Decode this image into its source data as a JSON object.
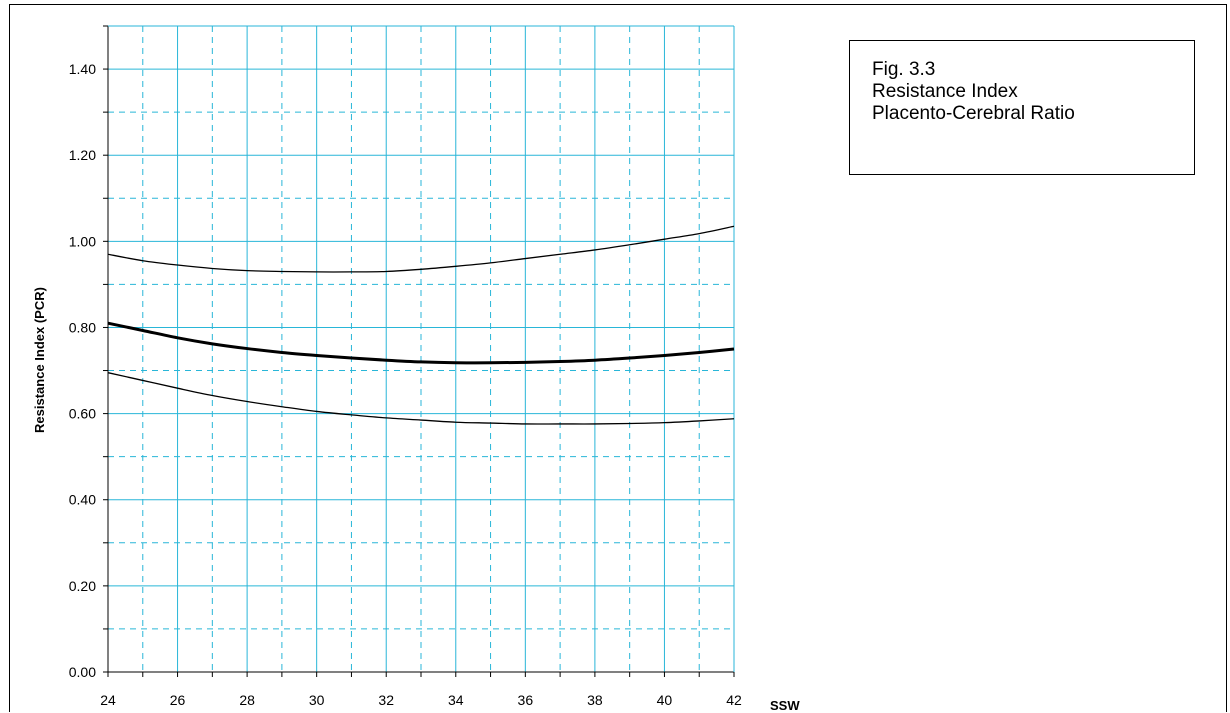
{
  "chart_data": {
    "type": "line",
    "title_lines": [
      "Fig. 3.3",
      "Resistance Index",
      "Placento-Cerebral Ratio"
    ],
    "xlabel": "SSW",
    "ylabel": "Resistance Index (PCR)",
    "xlim": [
      24,
      42
    ],
    "ylim": [
      0,
      1.5
    ],
    "x_ticks": [
      "24",
      "26",
      "28",
      "30",
      "32",
      "34",
      "36",
      "38",
      "40",
      "42"
    ],
    "y_ticks": [
      "0.00",
      "0.20",
      "0.40",
      "0.60",
      "0.80",
      "1.00",
      "1.20",
      "1.40"
    ],
    "grid": true,
    "x": [
      24,
      25,
      26,
      27,
      28,
      29,
      30,
      31,
      32,
      33,
      34,
      35,
      36,
      37,
      38,
      39,
      40,
      41,
      42
    ],
    "series": [
      {
        "values": [
          0.97,
          0.955,
          0.945,
          0.937,
          0.932,
          0.93,
          0.929,
          0.929,
          0.93,
          0.935,
          0.942,
          0.95,
          0.96,
          0.97,
          0.98,
          0.992,
          1.005,
          1.018,
          1.035
        ],
        "weight": "thin"
      },
      {
        "values": [
          0.81,
          0.793,
          0.776,
          0.762,
          0.751,
          0.742,
          0.735,
          0.729,
          0.724,
          0.72,
          0.718,
          0.718,
          0.719,
          0.721,
          0.724,
          0.729,
          0.735,
          0.742,
          0.75
        ],
        "weight": "bold"
      },
      {
        "values": [
          0.695,
          0.677,
          0.659,
          0.642,
          0.628,
          0.616,
          0.605,
          0.597,
          0.59,
          0.585,
          0.58,
          0.578,
          0.576,
          0.576,
          0.576,
          0.577,
          0.579,
          0.583,
          0.588
        ],
        "weight": "thin"
      }
    ]
  }
}
